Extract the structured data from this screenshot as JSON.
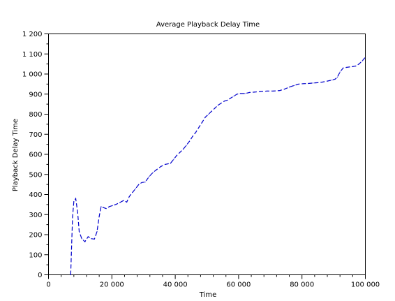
{
  "chart_data": {
    "type": "line",
    "title": "Average Playback Delay Time",
    "xlabel": "Time",
    "ylabel": "Playback Delay Time",
    "xlim": [
      0,
      100000
    ],
    "ylim": [
      0,
      1200
    ],
    "x_ticks": [
      0,
      20000,
      40000,
      60000,
      80000,
      100000
    ],
    "x_tick_labels": [
      "0",
      "20 000",
      "40 000",
      "60 000",
      "80 000",
      "100 000"
    ],
    "y_ticks": [
      0,
      100,
      200,
      300,
      400,
      500,
      600,
      700,
      800,
      900,
      1000,
      1100,
      1200
    ],
    "y_tick_labels": [
      "0",
      "100",
      "200",
      "300",
      "400",
      "500",
      "600",
      "700",
      "800",
      "900",
      "1 000",
      "1 100",
      "1 200"
    ],
    "grid": false,
    "legend": false,
    "series": [
      {
        "color": "#0000cc",
        "line_style": "dashed",
        "x": [
          7000,
          7200,
          7600,
          8000,
          8600,
          9200,
          9700,
          10500,
          11500,
          12500,
          13500,
          14500,
          15300,
          16000,
          16600,
          17300,
          18200,
          19200,
          20200,
          21200,
          22500,
          23700,
          24700,
          25500,
          26500,
          27500,
          28500,
          29500,
          30500,
          31800,
          33000,
          34200,
          35500,
          36800,
          38500,
          39500,
          40500,
          41500,
          42500,
          43500,
          44500,
          45500,
          46500,
          47500,
          48500,
          49500,
          50500,
          51500,
          52500,
          53500,
          54500,
          55500,
          56500,
          57500,
          58500,
          59500,
          60500,
          62000,
          63500,
          65000,
          67000,
          69000,
          71000,
          73000,
          74500,
          76000,
          77500,
          79000,
          80500,
          82000,
          83500,
          85000,
          86500,
          88000,
          89500,
          90500,
          91200,
          92000,
          93000,
          94000,
          95000,
          96000,
          97000,
          98000,
          99000,
          99800
        ],
        "y": [
          0,
          100,
          290,
          365,
          380,
          310,
          215,
          180,
          165,
          190,
          180,
          178,
          215,
          290,
          340,
          335,
          330,
          340,
          345,
          350,
          360,
          370,
          362,
          390,
          410,
          430,
          450,
          460,
          462,
          490,
          510,
          525,
          540,
          550,
          555,
          575,
          595,
          610,
          625,
          645,
          665,
          690,
          710,
          735,
          760,
          785,
          800,
          815,
          830,
          845,
          855,
          865,
          870,
          880,
          890,
          900,
          903,
          903,
          908,
          910,
          913,
          915,
          915,
          918,
          925,
          935,
          943,
          950,
          952,
          953,
          955,
          957,
          960,
          965,
          970,
          975,
          985,
          1010,
          1030,
          1033,
          1035,
          1037,
          1040,
          1050,
          1065,
          1080
        ]
      }
    ]
  }
}
